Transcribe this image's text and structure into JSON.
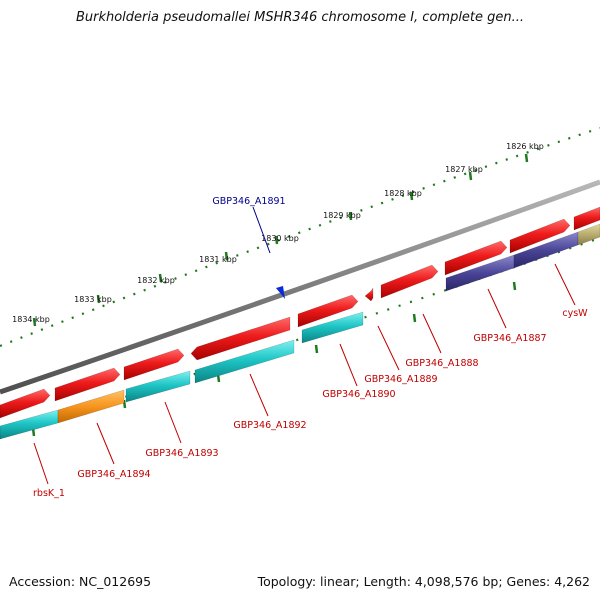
{
  "title": "Burkholderia pseudomallei MSHR346 chromosome I, complete gen...",
  "footer": {
    "accession": "Accession: NC_012695",
    "stats": "Topology: linear; Length: 4,098,576 bp; Genes: 4,262"
  },
  "ruler": {
    "ticks": [
      "1826 kbp",
      "1827 kbp",
      "1828 kbp",
      "1829 kbp",
      "1830 kbp",
      "1831 kbp",
      "1832 kbp",
      "1833 kbp",
      "1834 kbp"
    ]
  },
  "genes": {
    "A1891": "GBP346_A1891",
    "A1890": "GBP346_A1890",
    "A1889": "GBP346_A1889",
    "A1888": "GBP346_A1888",
    "A1887": "GBP346_A1887",
    "A1892": "GBP346_A1892",
    "A1893": "GBP346_A1893",
    "A1894": "GBP346_A1894",
    "cysW": "cysW",
    "rbsK": "rbsK_1"
  },
  "colors": {
    "gene_red": "#e8101a",
    "cds_cyan": "#1bbfbf",
    "orange": "#f7941d",
    "navy": "#4a4596",
    "olive": "#b8ac6f",
    "backbone": "#7d7d7d",
    "ruler_green": "#1f7a1f",
    "label_red": "#c00000",
    "label_blue": "#00008b"
  }
}
